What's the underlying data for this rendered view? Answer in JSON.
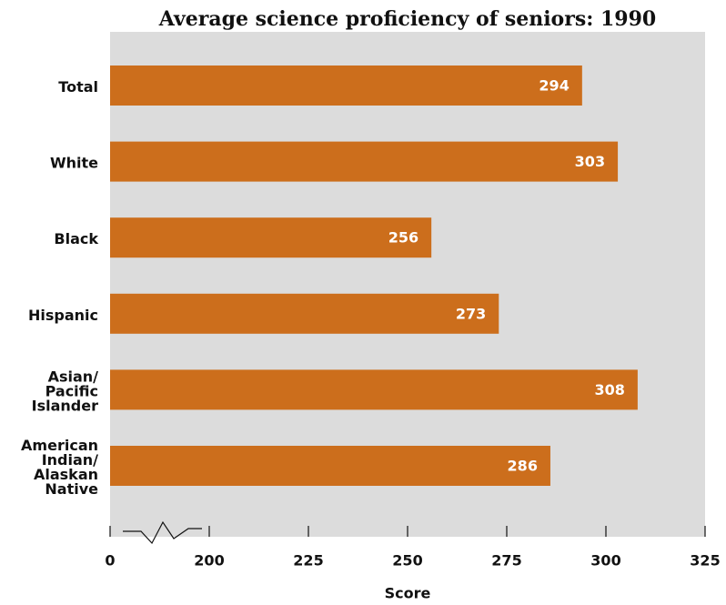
{
  "chart_data": {
    "type": "hbar",
    "title": "Average science proficiency of seniors: 1990",
    "categories": [
      "Total",
      "White",
      "Black",
      "Hispanic",
      "Asian/Pacific Islander",
      "American Indian/Alaskan Native"
    ],
    "values": [
      294,
      303,
      256,
      273,
      308,
      286
    ],
    "color": "#cc6e1c",
    "xlabel": "Score",
    "xlim": [
      0,
      325
    ],
    "xticks": [
      0,
      200,
      225,
      250,
      275,
      300,
      325
    ],
    "axis_break": [
      0,
      200
    ]
  }
}
